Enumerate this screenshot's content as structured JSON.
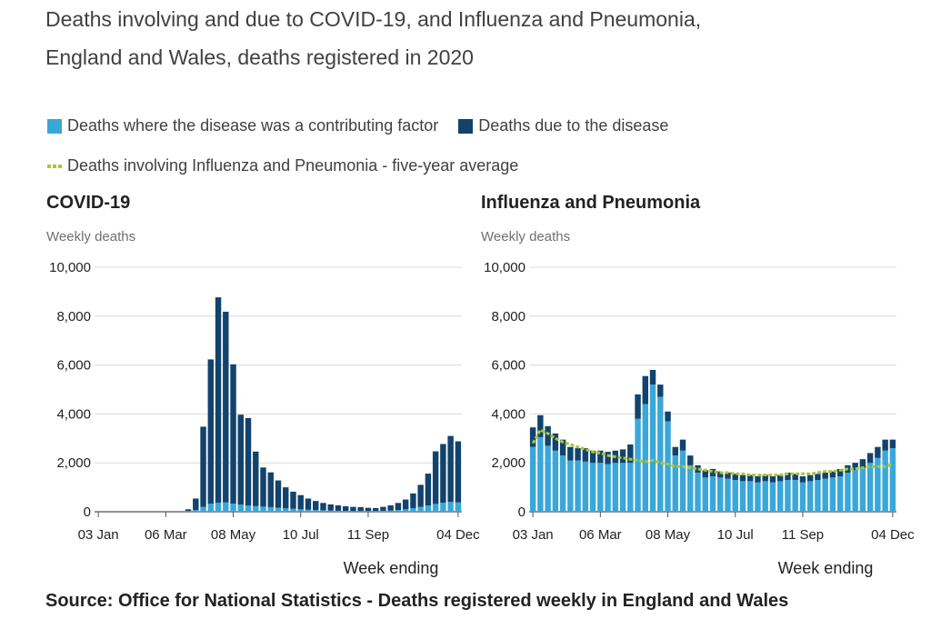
{
  "title_line1": "Deaths involving and due to COVID-19, and Influenza and Pneumonia,",
  "title_line2": "England and Wales, deaths registered in 2020",
  "legend": {
    "contributing": "Deaths where the disease was a contributing factor",
    "due": "Deaths due to the disease",
    "average": "Deaths involving Influenza and Pneumonia - five-year average"
  },
  "colors": {
    "contributing": "#3aa7d9",
    "due": "#12436d",
    "average": "#a8c639",
    "grid": "#d9d9d9",
    "axis": "#555555"
  },
  "source": "Source: Office for National Statistics - Deaths registered weekly in England and Wales",
  "chart_data": [
    {
      "type": "bar",
      "stacked": true,
      "title": "COVID-19",
      "ylabel": "Weekly deaths",
      "xlabel": "Week ending",
      "ylim": [
        0,
        10000
      ],
      "yticks": [
        0,
        2000,
        4000,
        6000,
        8000,
        10000
      ],
      "ytick_labels": [
        "0",
        "2,000",
        "4,000",
        "6,000",
        "8,000",
        "10,000"
      ],
      "xtick_labels": [
        {
          "index": 0,
          "label": "03 Jan"
        },
        {
          "index": 9,
          "label": "06 Mar"
        },
        {
          "index": 18,
          "label": "08 May"
        },
        {
          "index": 27,
          "label": "10 Jul"
        },
        {
          "index": 36,
          "label": "11 Sep"
        },
        {
          "index": 48,
          "label": "04 Dec"
        }
      ],
      "weeks": 49,
      "series": [
        {
          "name": "Deaths where the disease was a contributing factor",
          "values": [
            0,
            0,
            0,
            0,
            0,
            0,
            0,
            0,
            0,
            0,
            0,
            0,
            30,
            70,
            200,
            330,
            370,
            380,
            330,
            290,
            260,
            230,
            210,
            190,
            160,
            140,
            120,
            100,
            80,
            70,
            60,
            50,
            40,
            35,
            30,
            30,
            30,
            30,
            40,
            50,
            70,
            100,
            150,
            200,
            260,
            320,
            370,
            400,
            380
          ]
        },
        {
          "name": "Deaths due to the disease",
          "values": [
            0,
            0,
            0,
            0,
            0,
            0,
            0,
            0,
            0,
            0,
            0,
            0,
            70,
            470,
            3280,
            5900,
            8400,
            7800,
            5700,
            3680,
            3570,
            2230,
            1600,
            1420,
            1120,
            860,
            700,
            580,
            460,
            370,
            300,
            250,
            220,
            190,
            170,
            160,
            130,
            120,
            160,
            210,
            290,
            400,
            600,
            900,
            1300,
            2150,
            2400,
            2700,
            2500
          ]
        }
      ]
    },
    {
      "type": "bar",
      "stacked": true,
      "title": "Influenza and Pneumonia",
      "ylabel": "Weekly deaths",
      "xlabel": "Week ending",
      "ylim": [
        0,
        10000
      ],
      "yticks": [
        0,
        2000,
        4000,
        6000,
        8000,
        10000
      ],
      "ytick_labels": [
        "0",
        "2,000",
        "4,000",
        "6,000",
        "8,000",
        "10,000"
      ],
      "xtick_labels": [
        {
          "index": 0,
          "label": "03 Jan"
        },
        {
          "index": 9,
          "label": "06 Mar"
        },
        {
          "index": 18,
          "label": "08 May"
        },
        {
          "index": 27,
          "label": "10 Jul"
        },
        {
          "index": 36,
          "label": "11 Sep"
        },
        {
          "index": 48,
          "label": "04 Dec"
        }
      ],
      "weeks": 49,
      "series": [
        {
          "name": "Deaths where the disease was a contributing factor",
          "values": [
            2650,
            3050,
            2700,
            2500,
            2300,
            2100,
            2100,
            2050,
            2000,
            2000,
            1950,
            2000,
            2000,
            2000,
            3800,
            4400,
            5200,
            4700,
            3700,
            2300,
            2500,
            1900,
            1600,
            1400,
            1450,
            1400,
            1350,
            1300,
            1250,
            1250,
            1200,
            1250,
            1200,
            1250,
            1300,
            1300,
            1200,
            1250,
            1300,
            1350,
            1400,
            1450,
            1600,
            1700,
            1800,
            2000,
            2200,
            2500,
            2600
          ]
        },
        {
          "name": "Deaths due to the disease",
          "values": [
            800,
            900,
            800,
            700,
            650,
            550,
            500,
            550,
            500,
            500,
            500,
            500,
            550,
            750,
            1000,
            1150,
            600,
            500,
            400,
            350,
            450,
            400,
            300,
            300,
            300,
            250,
            250,
            250,
            250,
            250,
            250,
            250,
            250,
            250,
            300,
            250,
            250,
            250,
            250,
            250,
            250,
            300,
            300,
            300,
            350,
            400,
            450,
            450,
            350
          ]
        },
        {
          "name": "Deaths involving Influenza and Pneumonia - five-year average",
          "type": "line",
          "values": [
            2800,
            3350,
            3200,
            3000,
            2850,
            2750,
            2650,
            2550,
            2450,
            2400,
            2300,
            2250,
            2200,
            2150,
            2100,
            2050,
            2100,
            2000,
            1950,
            1850,
            1850,
            1800,
            1750,
            1700,
            1650,
            1600,
            1600,
            1550,
            1550,
            1500,
            1500,
            1500,
            1500,
            1500,
            1550,
            1550,
            1550,
            1550,
            1600,
            1650,
            1650,
            1700,
            1750,
            1750,
            1800,
            1850,
            1850,
            1850,
            1950
          ]
        }
      ]
    }
  ]
}
